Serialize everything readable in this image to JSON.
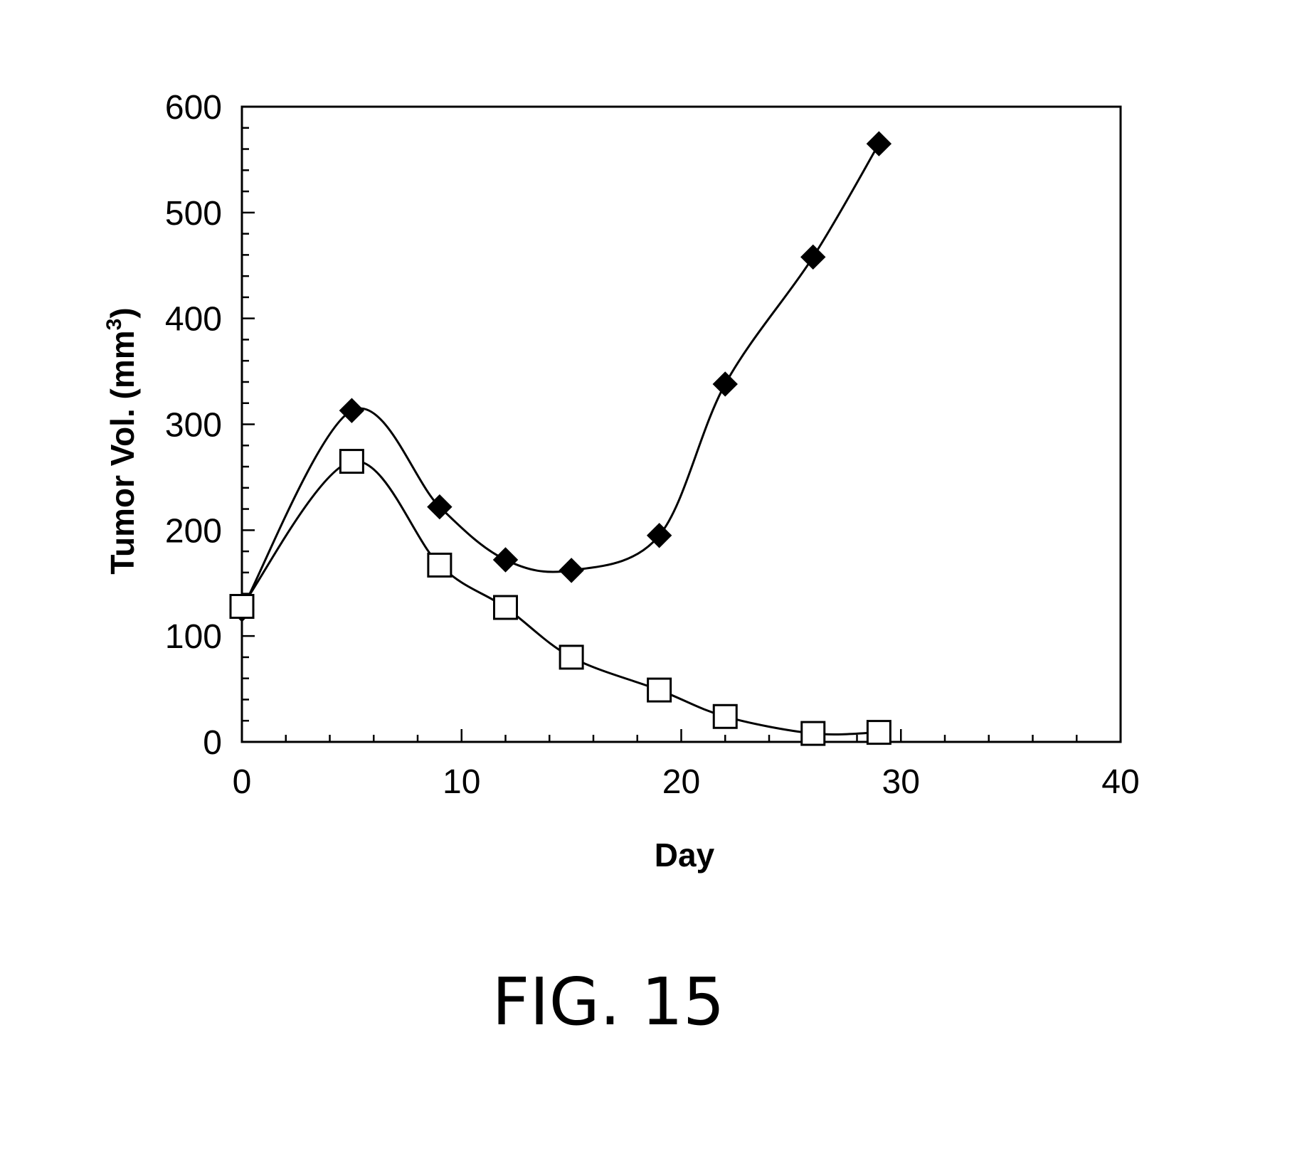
{
  "figure": {
    "label": "FIG. 15"
  },
  "chart_data": {
    "type": "line",
    "title": "",
    "xlabel": "Day",
    "ylabel": "Tumor Vol. (mm³)",
    "ylabel_parts": {
      "main": "Tumor Vol. (mm",
      "sup": "3",
      "end": ")"
    },
    "xlim": [
      0,
      40
    ],
    "ylim": [
      0,
      600
    ],
    "x_ticks": [
      0,
      10,
      20,
      30,
      40
    ],
    "y_ticks": [
      0,
      100,
      200,
      300,
      400,
      500,
      600
    ],
    "x_minor_step": 2,
    "y_minor_step": 20,
    "grid": false,
    "legend": "none",
    "smooth": true,
    "series": [
      {
        "marker": "diamond-filled",
        "color": "#000000",
        "x": [
          0,
          5,
          9,
          12,
          15,
          19,
          22,
          26,
          29
        ],
        "y": [
          125,
          313,
          222,
          172,
          162,
          195,
          338,
          458,
          565
        ]
      },
      {
        "marker": "square-open",
        "color": "#000000",
        "x": [
          0,
          5,
          9,
          12,
          15,
          19,
          22,
          26,
          29
        ],
        "y": [
          128,
          265,
          167,
          127,
          80,
          49,
          24,
          8,
          9
        ]
      }
    ]
  }
}
